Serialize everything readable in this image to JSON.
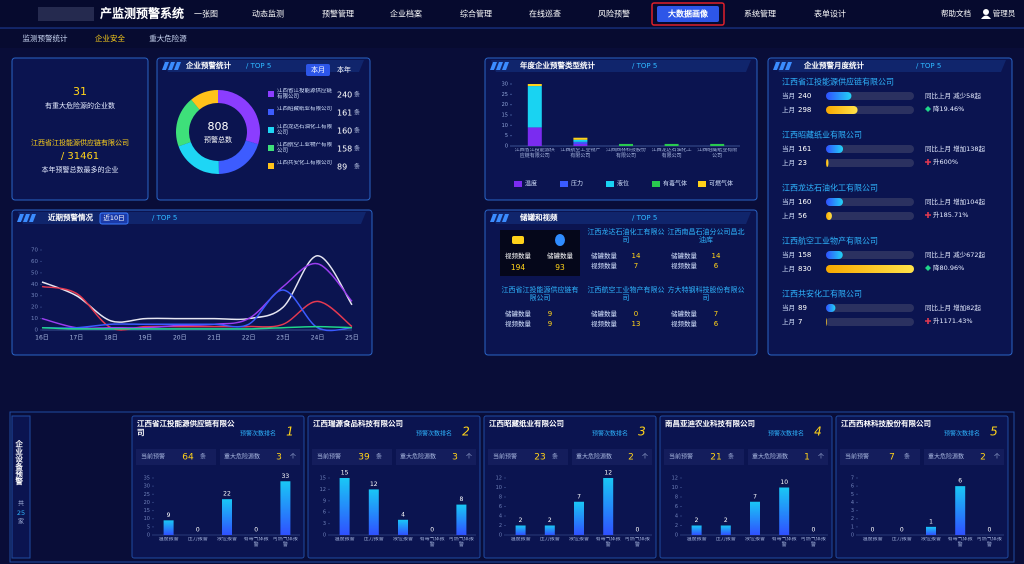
{
  "header": {
    "title": "产监测预警系统",
    "nav": [
      "一张图",
      "动态监测",
      "预警管理",
      "企业档案",
      "综合管理",
      "在线巡查",
      "风险预警",
      "大数据画像",
      "系统管理",
      "表单设计"
    ],
    "help": "帮助文档",
    "user": "管理员"
  },
  "subnav": [
    "监测预警统计",
    "企业安全",
    "重大危险源"
  ],
  "summary": {
    "count": 31,
    "count_label": "有重大危险源的企业数",
    "top_company": "江西省江投能源供应链有限公司",
    "top_total": "/ 31461",
    "top_label": "本年预警总数最多的企业"
  },
  "tanks": {
    "title": "储罐和视频",
    "subtitle": "/ TOP 5",
    "video_label": "视频数量",
    "video_total": 194,
    "tank_label": "储罐数量",
    "tank_total": 93,
    "companies": [
      {
        "name": "江西龙达石油化工有限公司",
        "tanks": 14,
        "videos": 7
      },
      {
        "name": "江西南昌石油分公司昌北油库",
        "tanks": 14,
        "videos": 6
      },
      {
        "name": "江西省江投能源供应链有限公司",
        "tanks": 9,
        "videos": 9
      },
      {
        "name": "江西航空工业物产有限公司",
        "tanks": 0,
        "videos": 13
      },
      {
        "name": "方大特钢科技股份有限公司",
        "tanks": 7,
        "videos": 6
      }
    ]
  },
  "monthly": {
    "title": "企业预警月度统计",
    "subtitle": "/ TOP 5",
    "current_label": "当月",
    "last_label": "上月",
    "rows": [
      {
        "name": "江西省江投能源供应链有限公司",
        "current": 240,
        "last": 298,
        "change": "同比上月 减少58起",
        "trend": "降19.46%",
        "direction": "down"
      },
      {
        "name": "江西昭藏纸业有限公司",
        "current": 161,
        "last": 23,
        "change": "同比上月 增加138起",
        "trend": "升600%",
        "direction": "up"
      },
      {
        "name": "江西龙达石油化工有限公司",
        "current": 160,
        "last": 56,
        "change": "同比上月 增加104起",
        "trend": "升185.71%",
        "direction": "up"
      },
      {
        "name": "江西航空工业物产有限公司",
        "current": 158,
        "last": 830,
        "change": "同比上月 减少672起",
        "trend": "降80.96%",
        "direction": "down"
      },
      {
        "name": "江西共安化工有限公司",
        "current": 89,
        "last": 7,
        "change": "同比上月 增加82起",
        "trend": "升1171.43%",
        "direction": "up"
      }
    ]
  },
  "equipment": {
    "title": "企业设备预警",
    "total_prefix": "共",
    "total": 25,
    "total_unit": "家",
    "rank_label": "预警次数排名",
    "current_label": "当前预警",
    "current_unit": "条",
    "hazard_label": "重大危险源数",
    "hazard_unit": "个"
  },
  "chart_data": [
    {
      "type": "pie",
      "title": "企业预警统计",
      "subtitle": "/ TOP 5",
      "tabs": [
        "本月",
        "本年"
      ],
      "total": 808,
      "total_label": "预警总数",
      "unit": "条",
      "categories": [
        "江西省江投能源供应链有限公司",
        "江西昭藏纸业有限公司",
        "江西龙达石油化工有限公司",
        "江西航空工业物产有限公司",
        "江西共安化工有限公司"
      ],
      "values": [
        240,
        161,
        160,
        158,
        89
      ],
      "colors": [
        "#8b3dff",
        "#3d5cff",
        "#1ed6f5",
        "#3ee07a",
        "#ffc21a"
      ]
    },
    {
      "type": "bar",
      "stacked": true,
      "title": "年度企业预警类型统计",
      "subtitle": "/ TOP 5",
      "categories": [
        "江西省江投能源供应链有限公司",
        "江西航空工业物产有限公司",
        "江西西林科技股份有限公司",
        "江西龙达石油化工有限公司",
        "江西昭藏纸业有限公司"
      ],
      "series": [
        {
          "name": "温度",
          "color": "#7a2cf0",
          "values": [
            9,
            1,
            0,
            0,
            0
          ]
        },
        {
          "name": "压力",
          "color": "#3a5cff",
          "values": [
            0,
            1,
            0,
            0,
            0
          ]
        },
        {
          "name": "液位",
          "color": "#19d3f2",
          "values": [
            20,
            1,
            0,
            0,
            0
          ]
        },
        {
          "name": "有毒气体",
          "color": "#29c94f",
          "values": [
            0,
            0,
            1,
            1,
            1
          ]
        },
        {
          "name": "可燃气体",
          "color": "#ffd21a",
          "values": [
            1,
            1,
            0,
            0,
            0
          ]
        }
      ],
      "ylim": [
        0,
        30
      ],
      "yticks": [
        0,
        5,
        10,
        15,
        20,
        25,
        30
      ]
    },
    {
      "type": "line",
      "title": "近期预警情况",
      "tab": "近10日",
      "subtitle": "/ TOP 5",
      "categories": [
        "16日",
        "17日",
        "18日",
        "19日",
        "20日",
        "21日",
        "22日",
        "23日",
        "24日",
        "25日"
      ],
      "series": [
        {
          "color": "#e6e6f2",
          "values": [
            42,
            30,
            8,
            10,
            10,
            10,
            10,
            20,
            65,
            22
          ]
        },
        {
          "color": "#e53950",
          "values": [
            38,
            32,
            2,
            3,
            3,
            3,
            3,
            5,
            25,
            3
          ]
        },
        {
          "color": "#9b3df0",
          "values": [
            10,
            2,
            2,
            2,
            4,
            5,
            10,
            38,
            58,
            25
          ]
        },
        {
          "color": "#3b5bff",
          "values": [
            2,
            2,
            5,
            5,
            5,
            5,
            5,
            35,
            2,
            2
          ]
        },
        {
          "color": "#1fd68a",
          "values": [
            2,
            1,
            1,
            1,
            1,
            1,
            1,
            2,
            3,
            2
          ]
        }
      ],
      "ylim": [
        0,
        70
      ],
      "yticks": [
        0,
        10,
        20,
        30,
        40,
        50,
        60,
        70
      ]
    },
    {
      "type": "bar",
      "title": "江西省江投能源供应链有限公司",
      "rank": 1,
      "current": 64,
      "hazard": 3,
      "categories": [
        "温度报警",
        "压力报警",
        "液位报警",
        "有毒气体报警",
        "可燃气体报警"
      ],
      "values": [
        9,
        0,
        22,
        0,
        33
      ],
      "ylim": [
        0,
        35
      ],
      "yticks": [
        0,
        5,
        10,
        15,
        20,
        25,
        30,
        35
      ]
    },
    {
      "type": "bar",
      "title": "江西瑞源食品科技有限公司",
      "rank": 2,
      "current": 39,
      "hazard": 3,
      "categories": [
        "温度报警",
        "压力报警",
        "液位报警",
        "有毒气体报警",
        "可燃气体报警"
      ],
      "values": [
        15,
        12,
        4,
        0,
        8
      ],
      "ylim": [
        0,
        15
      ],
      "yticks": [
        0,
        3,
        6,
        9,
        12,
        15
      ]
    },
    {
      "type": "bar",
      "title": "江西昭藏纸业有限公司",
      "rank": 3,
      "current": 23,
      "hazard": 2,
      "categories": [
        "温度报警",
        "压力报警",
        "液位报警",
        "有毒气体报警",
        "可燃气体报警"
      ],
      "values": [
        2,
        2,
        7,
        12,
        0
      ],
      "ylim": [
        0,
        12
      ],
      "yticks": [
        0,
        2,
        4,
        6,
        8,
        10,
        12
      ]
    },
    {
      "type": "bar",
      "title": "南昌亚迪农业科技有限公司",
      "rank": 4,
      "current": 21,
      "hazard": 1,
      "categories": [
        "温度报警",
        "压力报警",
        "液位报警",
        "有毒气体报警",
        "可燃气体报警"
      ],
      "values": [
        2,
        2,
        7,
        10,
        0
      ],
      "ylim": [
        0,
        12
      ],
      "yticks": [
        0,
        2,
        4,
        6,
        8,
        10,
        12
      ]
    },
    {
      "type": "bar",
      "title": "江西西林科技股份有限公司",
      "rank": 5,
      "current": 7,
      "hazard": 2,
      "categories": [
        "温度报警",
        "压力报警",
        "液位报警",
        "有毒气体报警",
        "可燃气体报警"
      ],
      "values": [
        0,
        0,
        1,
        6,
        0
      ],
      "ylim": [
        0,
        7
      ],
      "yticks": [
        0,
        1,
        2,
        3,
        4,
        5,
        6,
        7
      ]
    }
  ]
}
